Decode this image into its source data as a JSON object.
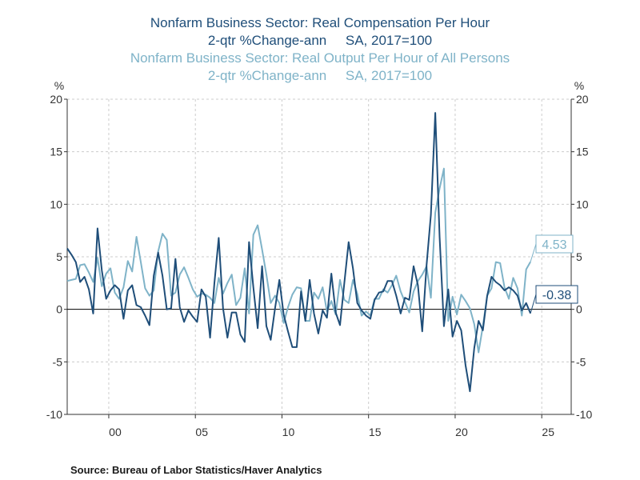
{
  "titles": {
    "series1_line1": "Nonfarm Business Sector: Real Compensation Per Hour",
    "series1_line2": "2-qtr %Change-ann     SA, 2017=100",
    "series2_line1": "Nonfarm Business Sector: Real Output Per Hour of All Persons",
    "series2_line2": "2-qtr %Change-ann     SA, 2017=100"
  },
  "source": "Source:  Bureau of Labor Statistics/Haver Analytics",
  "colors": {
    "dark": "#1f4e79",
    "light": "#7fb3c8",
    "grid": "#cccccc",
    "axis": "#333333"
  },
  "chart_data": {
    "type": "line",
    "title": "Nonfarm Business Sector: Real Compensation Per Hour / Real Output Per Hour of All Persons",
    "xlabel": "",
    "ylabel": "%",
    "ylabel_right": "%",
    "xlim": [
      1997.6,
      2026.7
    ],
    "ylim": [
      -10,
      20
    ],
    "yticks": [
      20,
      15,
      10,
      5,
      0,
      -5,
      -10
    ],
    "xticks": [
      {
        "value": 2000,
        "label": "00"
      },
      {
        "value": 2005,
        "label": "05"
      },
      {
        "value": 2010,
        "label": "10"
      },
      {
        "value": 2015,
        "label": "15"
      },
      {
        "value": 2020,
        "label": "20"
      },
      {
        "value": 2025,
        "label": "25"
      }
    ],
    "grid": true,
    "series": [
      {
        "name": "Real Compensation Per Hour",
        "color": "#1f4e79",
        "last_label": "-0.38",
        "x_start": 1997.6,
        "step": 0.25,
        "values": [
          5.8,
          5.2,
          4.5,
          2.6,
          3.1,
          1.9,
          -0.4,
          7.7,
          3.7,
          1.0,
          1.8,
          2.3,
          1.9,
          -0.9,
          1.8,
          2.3,
          0.4,
          0.2,
          -0.6,
          -1.5,
          3.2,
          5.4,
          3.2,
          0.0,
          0.1,
          4.8,
          0.2,
          -1.2,
          -0.1,
          -0.7,
          -1.2,
          1.9,
          1.2,
          -2.7,
          2.5,
          6.8,
          0.1,
          -2.7,
          -0.3,
          -0.3,
          -2.4,
          -3.1,
          6.4,
          2.1,
          -1.8,
          4.1,
          -1.6,
          -2.9,
          0.1,
          2.8,
          -0.5,
          -2.1,
          -3.6,
          -3.6,
          1.7,
          -1.1,
          2.8,
          -0.4,
          -2.3,
          -0.1,
          -0.8,
          3.4,
          -0.3,
          -1.5,
          2.5,
          6.4,
          3.9,
          0.6,
          -0.1,
          -0.6,
          -0.9,
          0.9,
          1.6,
          1.7,
          2.7,
          2.7,
          1.3,
          -0.4,
          1.1,
          0.9,
          4.1,
          2.3,
          -2.1,
          4.2,
          9.0,
          18.7,
          6.9,
          -1.6,
          1.9,
          -2.6,
          -1.1,
          -2.0,
          -5.3,
          -7.8,
          -3.7,
          -1.1,
          -2.0,
          1.3,
          3.1,
          2.6,
          2.3,
          1.8,
          2.1,
          1.8,
          1.3,
          -0.1,
          0.6,
          -0.38
        ]
      },
      {
        "name": "Real Output Per Hour of All Persons",
        "color": "#7fb3c8",
        "last_label": "4.53",
        "x_start": 1997.6,
        "step": 0.25,
        "values": [
          2.7,
          2.8,
          2.9,
          4.2,
          4.3,
          3.5,
          2.6,
          4.9,
          2.2,
          3.4,
          3.9,
          1.6,
          1.0,
          2.1,
          4.6,
          3.6,
          6.9,
          4.5,
          2.0,
          1.3,
          1.8,
          5.5,
          7.2,
          6.6,
          1.3,
          1.6,
          3.3,
          4.0,
          3.0,
          1.9,
          1.2,
          1.5,
          1.4,
          1.1,
          0.6,
          3.0,
          1.5,
          2.5,
          3.3,
          0.4,
          1.1,
          3.9,
          -0.4,
          7.1,
          8.0,
          5.7,
          3.3,
          0.6,
          1.3,
          0.6,
          -1.3,
          0.2,
          1.4,
          2.1,
          2.0,
          -1.1,
          -1.1,
          1.6,
          1.0,
          2.1,
          -0.2,
          0.8,
          -0.5,
          2.8,
          0.9,
          0.6,
          2.8,
          1.5,
          -0.6,
          -0.2,
          -0.6,
          1.0,
          1.0,
          1.9,
          1.6,
          2.3,
          3.2,
          1.7,
          0.7,
          -0.3,
          1.7,
          2.7,
          3.3,
          4.1,
          1.1,
          9.2,
          11.5,
          13.4,
          -1.1,
          1.2,
          -0.5,
          1.4,
          0.8,
          0.1,
          -1.4,
          -4.1,
          -1.6,
          1.3,
          2.0,
          4.5,
          4.4,
          2.1,
          1.0,
          3.0,
          2.0,
          -0.6,
          3.8,
          4.53
        ]
      }
    ]
  }
}
